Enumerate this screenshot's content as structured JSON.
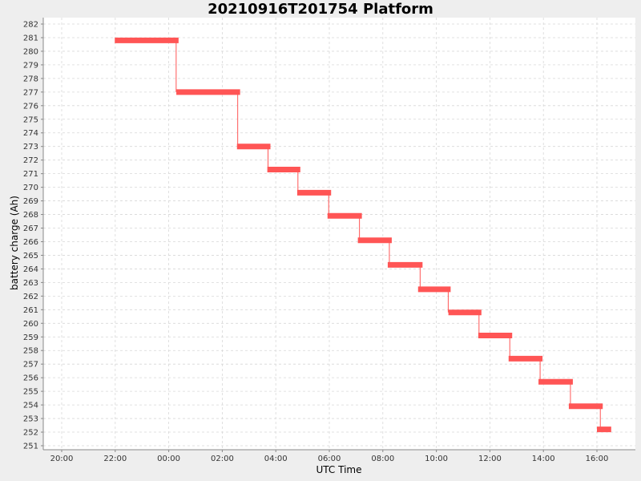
{
  "chart_data": {
    "type": "line",
    "title": "20210916T201754 Platform",
    "xlabel": "UTC Time",
    "ylabel": "battery charge (Ah)",
    "x_ticks": [
      "20:00",
      "22:00",
      "00:00",
      "02:00",
      "04:00",
      "06:00",
      "08:00",
      "10:00",
      "12:00",
      "14:00",
      "16:00"
    ],
    "y_range": [
      251,
      282
    ],
    "grid": true,
    "series": [
      {
        "color": "#ff5555",
        "segments": [
          {
            "start": "21:59",
            "end": "00:22",
            "value": 280.8
          },
          {
            "start": "00:17",
            "end": "02:40",
            "value": 277.0
          },
          {
            "start": "02:33",
            "end": "03:48",
            "value": 273.0
          },
          {
            "start": "03:41",
            "end": "04:55",
            "value": 271.3
          },
          {
            "start": "04:48",
            "end": "06:04",
            "value": 269.6
          },
          {
            "start": "05:56",
            "end": "07:13",
            "value": 267.9
          },
          {
            "start": "07:04",
            "end": "08:20",
            "value": 266.1
          },
          {
            "start": "08:11",
            "end": "09:29",
            "value": 264.3
          },
          {
            "start": "09:19",
            "end": "10:32",
            "value": 262.5
          },
          {
            "start": "10:27",
            "end": "11:41",
            "value": 260.8
          },
          {
            "start": "11:34",
            "end": "12:50",
            "value": 259.1
          },
          {
            "start": "12:42",
            "end": "13:58",
            "value": 257.4
          },
          {
            "start": "13:49",
            "end": "15:06",
            "value": 255.7
          },
          {
            "start": "14:57",
            "end": "16:13",
            "value": 253.9
          },
          {
            "start": "16:00",
            "end": "16:32",
            "value": 252.2
          }
        ]
      }
    ]
  }
}
